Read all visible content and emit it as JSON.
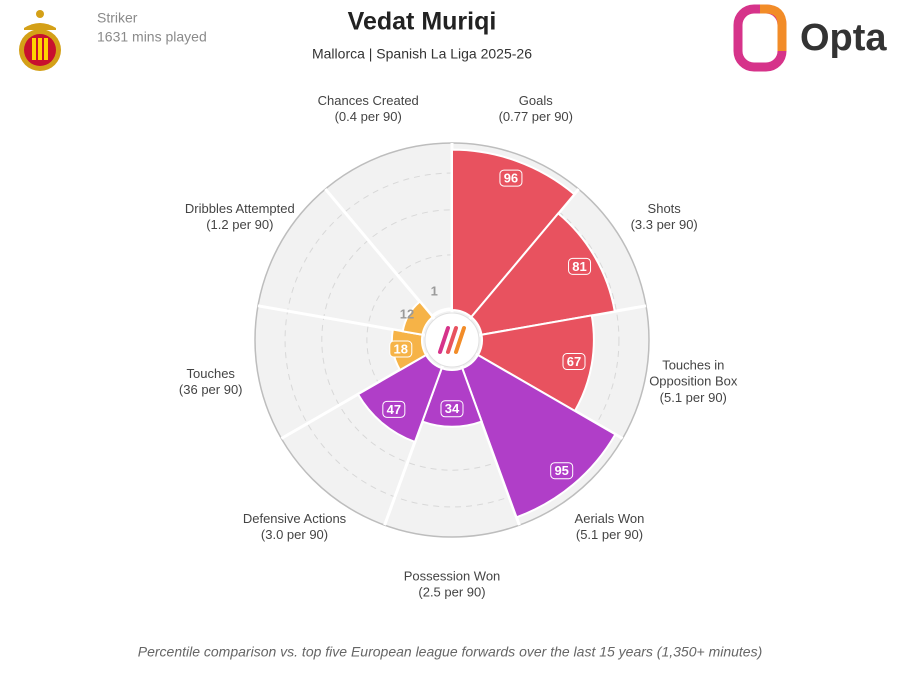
{
  "chart_data": {
    "type": "polar-bar",
    "title": "Vedat Muriqi",
    "subtitle": "Mallorca | Spanish La Liga 2025-26",
    "position": "Striker",
    "minutes": "1631 mins played",
    "brand": "Opta",
    "footnote": "Percentile comparison vs. top five European league forwards over the last 15 years (1,350+ minutes)",
    "categories": [
      "Goals",
      "Shots",
      "Touches in Opposition Box",
      "Aerials Won",
      "Possession Won",
      "Defensive Actions",
      "Touches",
      "Dribbles Attempted",
      "Chances Created"
    ],
    "sublabels": [
      "(0.77 per 90)",
      "(3.3 per 90)",
      "(5.1 per 90)",
      "(5.1 per 90)",
      "(2.5 per 90)",
      "(3.0 per 90)",
      "(36 per 90)",
      "(1.2 per 90)",
      "(0.4 per 90)"
    ],
    "values": [
      96,
      81,
      67,
      95,
      34,
      47,
      18,
      12,
      1
    ],
    "colors": [
      "#e8525f",
      "#e8525f",
      "#e8525f",
      "#b03ec8",
      "#b03ec8",
      "#b03ec8",
      "#f6b347",
      "#f6b347",
      "#f6b347"
    ],
    "rlim": [
      0,
      100
    ]
  }
}
